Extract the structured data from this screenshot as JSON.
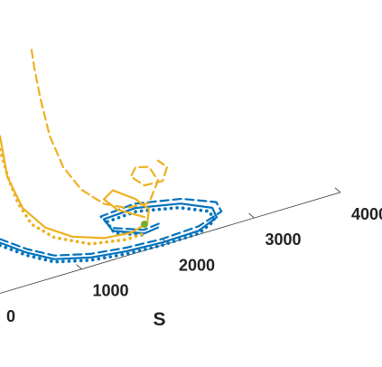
{
  "chart_data": {
    "type": "line",
    "xlabel": "S",
    "xlim": [
      0,
      4000
    ],
    "xticks": [
      0,
      1000,
      2000,
      3000,
      4000
    ],
    "ylim": [
      0,
      300
    ],
    "series": [
      {
        "color": "#0072BD",
        "style": "solid",
        "x": [
          52,
          366,
          681,
          1099,
          1518,
          1937,
          2356,
          2565,
          2513,
          2147,
          1623,
          1257,
          1361,
          1728,
          1885
        ],
        "values": [
          56,
          36,
          20,
          10,
          5,
          3,
          4,
          13,
          25,
          40,
          50,
          48,
          32,
          19,
          21
        ]
      },
      {
        "color": "#0072BD",
        "style": "dashed",
        "x": [
          52,
          366,
          681,
          1099,
          1518,
          1937,
          2356,
          2620,
          2560,
          2160,
          1610,
          1220,
          1340,
          1720,
          1900
        ],
        "values": [
          60,
          40,
          24,
          14,
          9,
          7,
          9,
          18,
          30,
          45,
          55,
          52,
          36,
          23,
          25
        ]
      },
      {
        "color": "#0072BD",
        "style": "dotted",
        "x": [
          52,
          366,
          681,
          1099,
          1518,
          1937,
          2356,
          2540,
          2480,
          2130,
          1630,
          1290,
          1380,
          1730
        ],
        "values": [
          53,
          33,
          17,
          7,
          2,
          0,
          1,
          10,
          22,
          36,
          46,
          44,
          29,
          17
        ]
      },
      {
        "color": "#EDB120",
        "style": "solid",
        "x": [
          52,
          136,
          314,
          576,
          890,
          1257,
          1571,
          1759,
          1780,
          1623,
          1361,
          1257,
          1414,
          1728
        ],
        "values": [
          174,
          127,
          87,
          58,
          39,
          27,
          24,
          29,
          44,
          60,
          77,
          70,
          54,
          37
        ]
      },
      {
        "color": "#EDB120",
        "style": "dashed",
        "x": [
          419,
          450,
          524,
          628,
          785,
          995,
          1257,
          1518,
          1780,
          1885,
          1780,
          1623,
          1571,
          1728,
          1937,
          1990,
          1885
        ],
        "values": [
          259,
          238,
          201,
          158,
          119,
          88,
          65,
          53,
          51,
          73,
          91,
          95,
          86,
          72,
          71,
          85,
          95
        ]
      },
      {
        "color": "#EDB120",
        "style": "dotted",
        "x": [
          52,
          157,
          262,
          419,
          681,
          1099,
          1518,
          1728
        ],
        "values": [
          159,
          122,
          94,
          66,
          44,
          25,
          18,
          19
        ]
      },
      {
        "color": "#77AC30",
        "style": "marker",
        "x": [
          1728
        ],
        "values": [
          29
        ]
      }
    ]
  }
}
